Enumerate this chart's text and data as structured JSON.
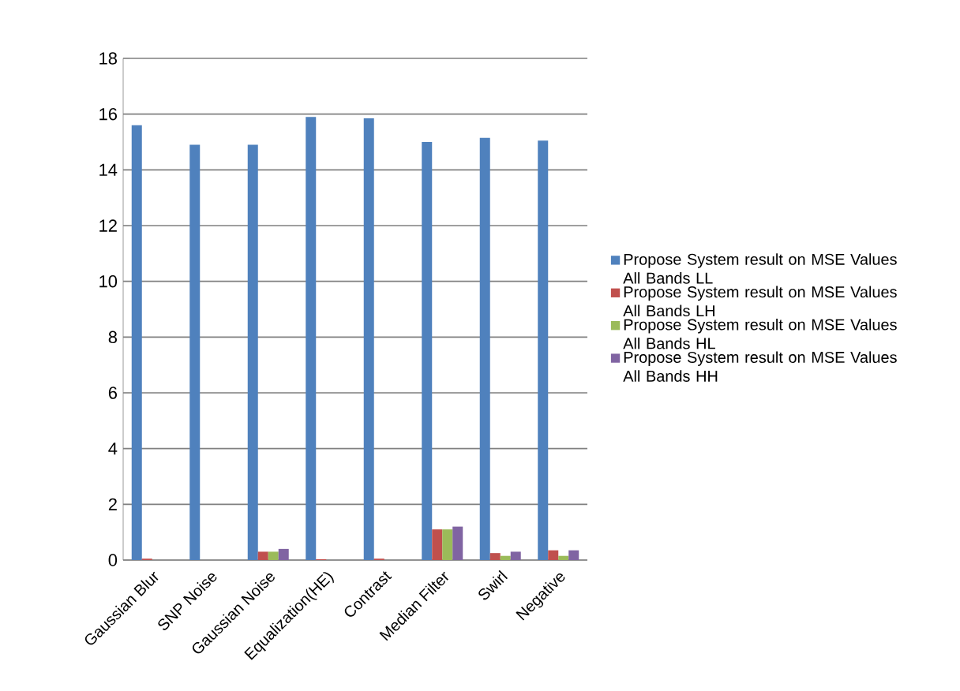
{
  "chart_data": {
    "type": "bar",
    "categories": [
      "Gaussian Blur",
      "SNP Noise",
      "Gaussian Noise",
      "Equalization(HE)",
      "Contrast",
      "Median Filter",
      "Swirl",
      "Negative"
    ],
    "series": [
      {
        "name": "Propose System result on MSE Values All Bands LL",
        "color": "#4f81bd",
        "values": [
          15.6,
          14.9,
          14.9,
          15.9,
          15.85,
          15.0,
          15.15,
          15.05
        ]
      },
      {
        "name": "Propose System result on MSE Values All Bands LH",
        "color": "#c0504d",
        "values": [
          0.05,
          0,
          0.3,
          0.03,
          0.05,
          1.1,
          0.25,
          0.35
        ]
      },
      {
        "name": "Propose System result on MSE Values All Bands HL",
        "color": "#9bbb59",
        "values": [
          0,
          0,
          0.3,
          0,
          0,
          1.1,
          0.15,
          0.15
        ]
      },
      {
        "name": "Propose System result on MSE Values All Bands HH",
        "color": "#8064a2",
        "values": [
          0,
          0,
          0.4,
          0,
          0,
          1.2,
          0.3,
          0.35
        ]
      }
    ],
    "ylim": [
      0,
      18
    ],
    "yticks": [
      0,
      2,
      4,
      6,
      8,
      10,
      12,
      14,
      16,
      18
    ],
    "grid": "y",
    "legend": "right"
  }
}
